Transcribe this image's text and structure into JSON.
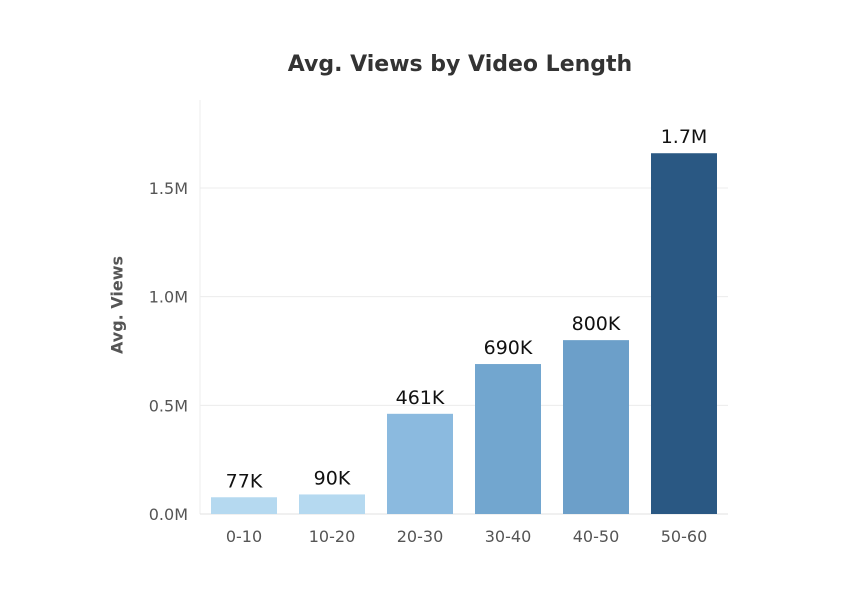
{
  "chart_data": {
    "type": "bar",
    "title": "Avg. Views by Video Length",
    "xlabel": "",
    "ylabel": "Avg. Views",
    "categories": [
      "0-10",
      "10-20",
      "20-30",
      "30-40",
      "40-50",
      "50-60"
    ],
    "values": [
      77000,
      90000,
      461000,
      690000,
      800000,
      1660000
    ],
    "data_labels": [
      "77K",
      "90K",
      "461K",
      "690K",
      "800K",
      "1.7M"
    ],
    "bar_colors": [
      "#b5d9f0",
      "#b5d9f0",
      "#8bbadf",
      "#72a6cf",
      "#6c9fc9",
      "#2a5883"
    ],
    "ylim": [
      0,
      1700000
    ],
    "yticks": [
      0,
      500000,
      1000000,
      1500000
    ],
    "ytick_labels": [
      "0.0M",
      "0.5M",
      "1.0M",
      "1.5M"
    ],
    "grid": true,
    "legend": "none"
  }
}
